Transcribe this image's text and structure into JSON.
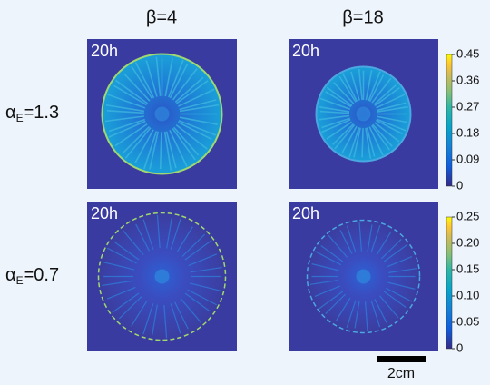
{
  "column_headers": [
    "β=4",
    "β=18"
  ],
  "rows": [
    {
      "label": {
        "symbol": "α",
        "subscript": "E",
        "text": "=1.3"
      },
      "panels": [
        "20h",
        "20h"
      ],
      "colorbar": {
        "lim": [
          0,
          0.45
        ],
        "ticks": [
          0,
          0.09,
          0.18,
          0.27,
          0.36,
          0.45
        ]
      }
    },
    {
      "label": {
        "symbol": "α",
        "subscript": "E",
        "text": "=0.7"
      },
      "panels": [
        "20h",
        "20h"
      ],
      "colorbar": {
        "lim": [
          0,
          0.25
        ],
        "ticks": [
          0,
          0.05,
          {
            "value": 0.1,
            "label": "0.10"
          },
          0.15,
          {
            "value": 0.2,
            "label": "0.20"
          },
          0.25
        ]
      }
    }
  ],
  "scale_bar": "2cm"
}
